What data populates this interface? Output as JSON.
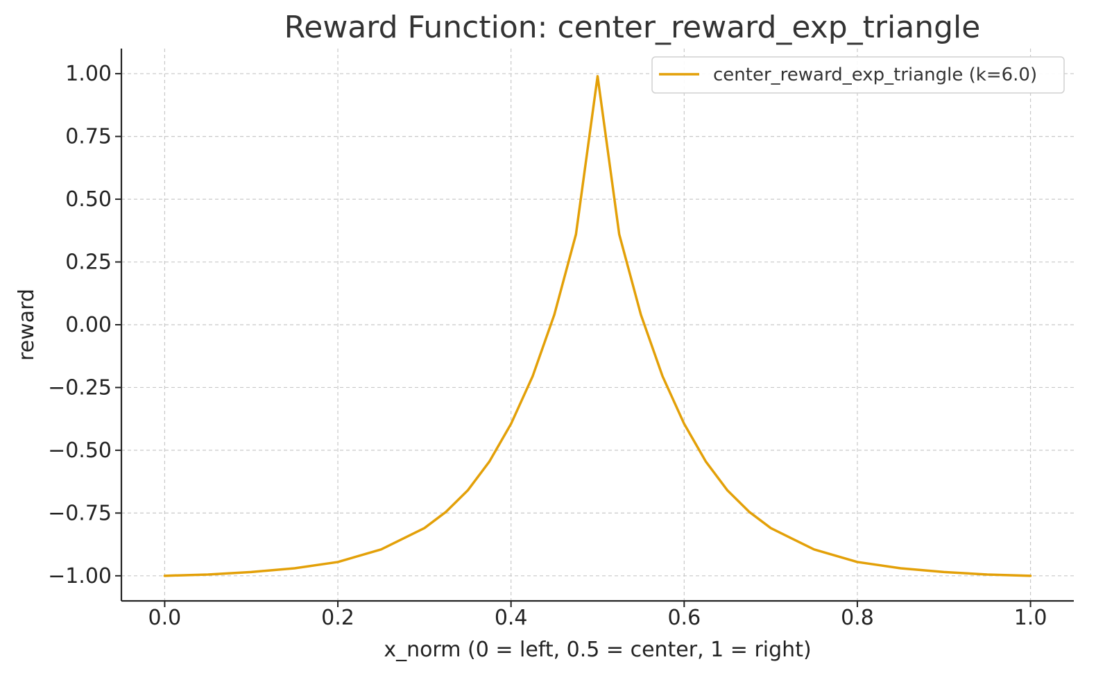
{
  "chart_data": {
    "type": "line",
    "title": "Reward Function: center_reward_exp_triangle",
    "xlabel": "x_norm (0 = left, 0.5 = center, 1 = right)",
    "ylabel": "reward",
    "xlim": [
      -0.05,
      1.05
    ],
    "ylim": [
      -1.1,
      1.1
    ],
    "xticks": [
      0.0,
      0.2,
      0.4,
      0.6,
      0.8,
      1.0
    ],
    "xtick_labels": [
      "0.0",
      "0.2",
      "0.4",
      "0.6",
      "0.8",
      "1.0"
    ],
    "yticks": [
      -1.0,
      -0.75,
      -0.5,
      -0.25,
      0.0,
      0.25,
      0.5,
      0.75,
      1.0
    ],
    "ytick_labels": [
      "−1.00",
      "−0.75",
      "−0.50",
      "−0.25",
      "0.00",
      "0.25",
      "0.50",
      "0.75",
      "1.00"
    ],
    "grid": true,
    "legend_position": "top-right",
    "series": [
      {
        "name": "center_reward_exp_triangle (k=6.0)",
        "color": "#E3A008",
        "x": [
          0.0,
          0.05,
          0.1,
          0.15,
          0.2,
          0.25,
          0.3,
          0.325,
          0.35,
          0.375,
          0.4,
          0.425,
          0.45,
          0.475,
          0.5,
          0.525,
          0.55,
          0.575,
          0.6,
          0.625,
          0.65,
          0.675,
          0.7,
          0.75,
          0.8,
          0.85,
          0.9,
          0.95,
          1.0
        ],
        "y": [
          -1.0,
          -0.995,
          -0.985,
          -0.97,
          -0.945,
          -0.895,
          -0.81,
          -0.745,
          -0.66,
          -0.545,
          -0.395,
          -0.205,
          0.04,
          0.36,
          0.99,
          0.36,
          0.04,
          -0.205,
          -0.395,
          -0.545,
          -0.66,
          -0.745,
          -0.81,
          -0.895,
          -0.945,
          -0.97,
          -0.985,
          -0.995,
          -1.0
        ]
      }
    ]
  }
}
